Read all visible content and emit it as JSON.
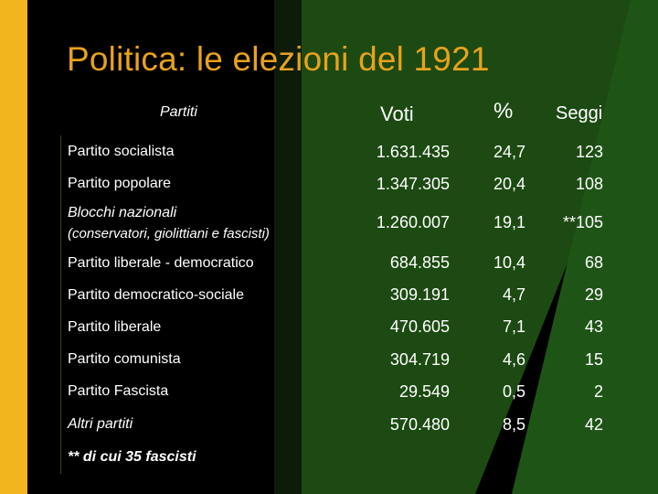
{
  "title": "Politica: le elezioni del 1921",
  "headers": {
    "partiti": "Partiti",
    "voti": "Voti",
    "percent": "%",
    "seggi": "Seggi"
  },
  "rows": [
    {
      "party": "Partito socialista",
      "votes": "1.631.435",
      "pct": "24,7",
      "seats": "123"
    },
    {
      "party": "Partito popolare",
      "votes": "1.347.305",
      "pct": "20,4",
      "seats": "108"
    },
    {
      "party": "Blocchi nazionali",
      "party_sub": "(conservatori, giolittiani e fascisti)",
      "votes": "1.260.007",
      "pct": "19,1",
      "seats": "**105"
    },
    {
      "party": "Partito liberale - democratico",
      "votes": "684.855",
      "pct": "10,4",
      "seats": "68"
    },
    {
      "party": "Partito democratico-sociale",
      "votes": "309.191",
      "pct": "4,7",
      "seats": "29"
    },
    {
      "party": "Partito liberale",
      "votes": "470.605",
      "pct": "7,1",
      "seats": "43"
    },
    {
      "party": "Partito comunista",
      "votes": "304.719",
      "pct": "4,6",
      "seats": "15"
    },
    {
      "party": "Partito Fascista",
      "votes": "29.549",
      "pct": "0,5",
      "seats": "2"
    },
    {
      "party": "Altri partiti",
      "votes": "570.480",
      "pct": "8,5",
      "seats": "42"
    }
  ],
  "footnote": "**  di cui 35 fascisti",
  "colors": {
    "title": "#E8A21A",
    "accent_bar": "#F2B51E",
    "green": "#1C4A12",
    "text": "#FFFFFF",
    "background": "#000000"
  }
}
